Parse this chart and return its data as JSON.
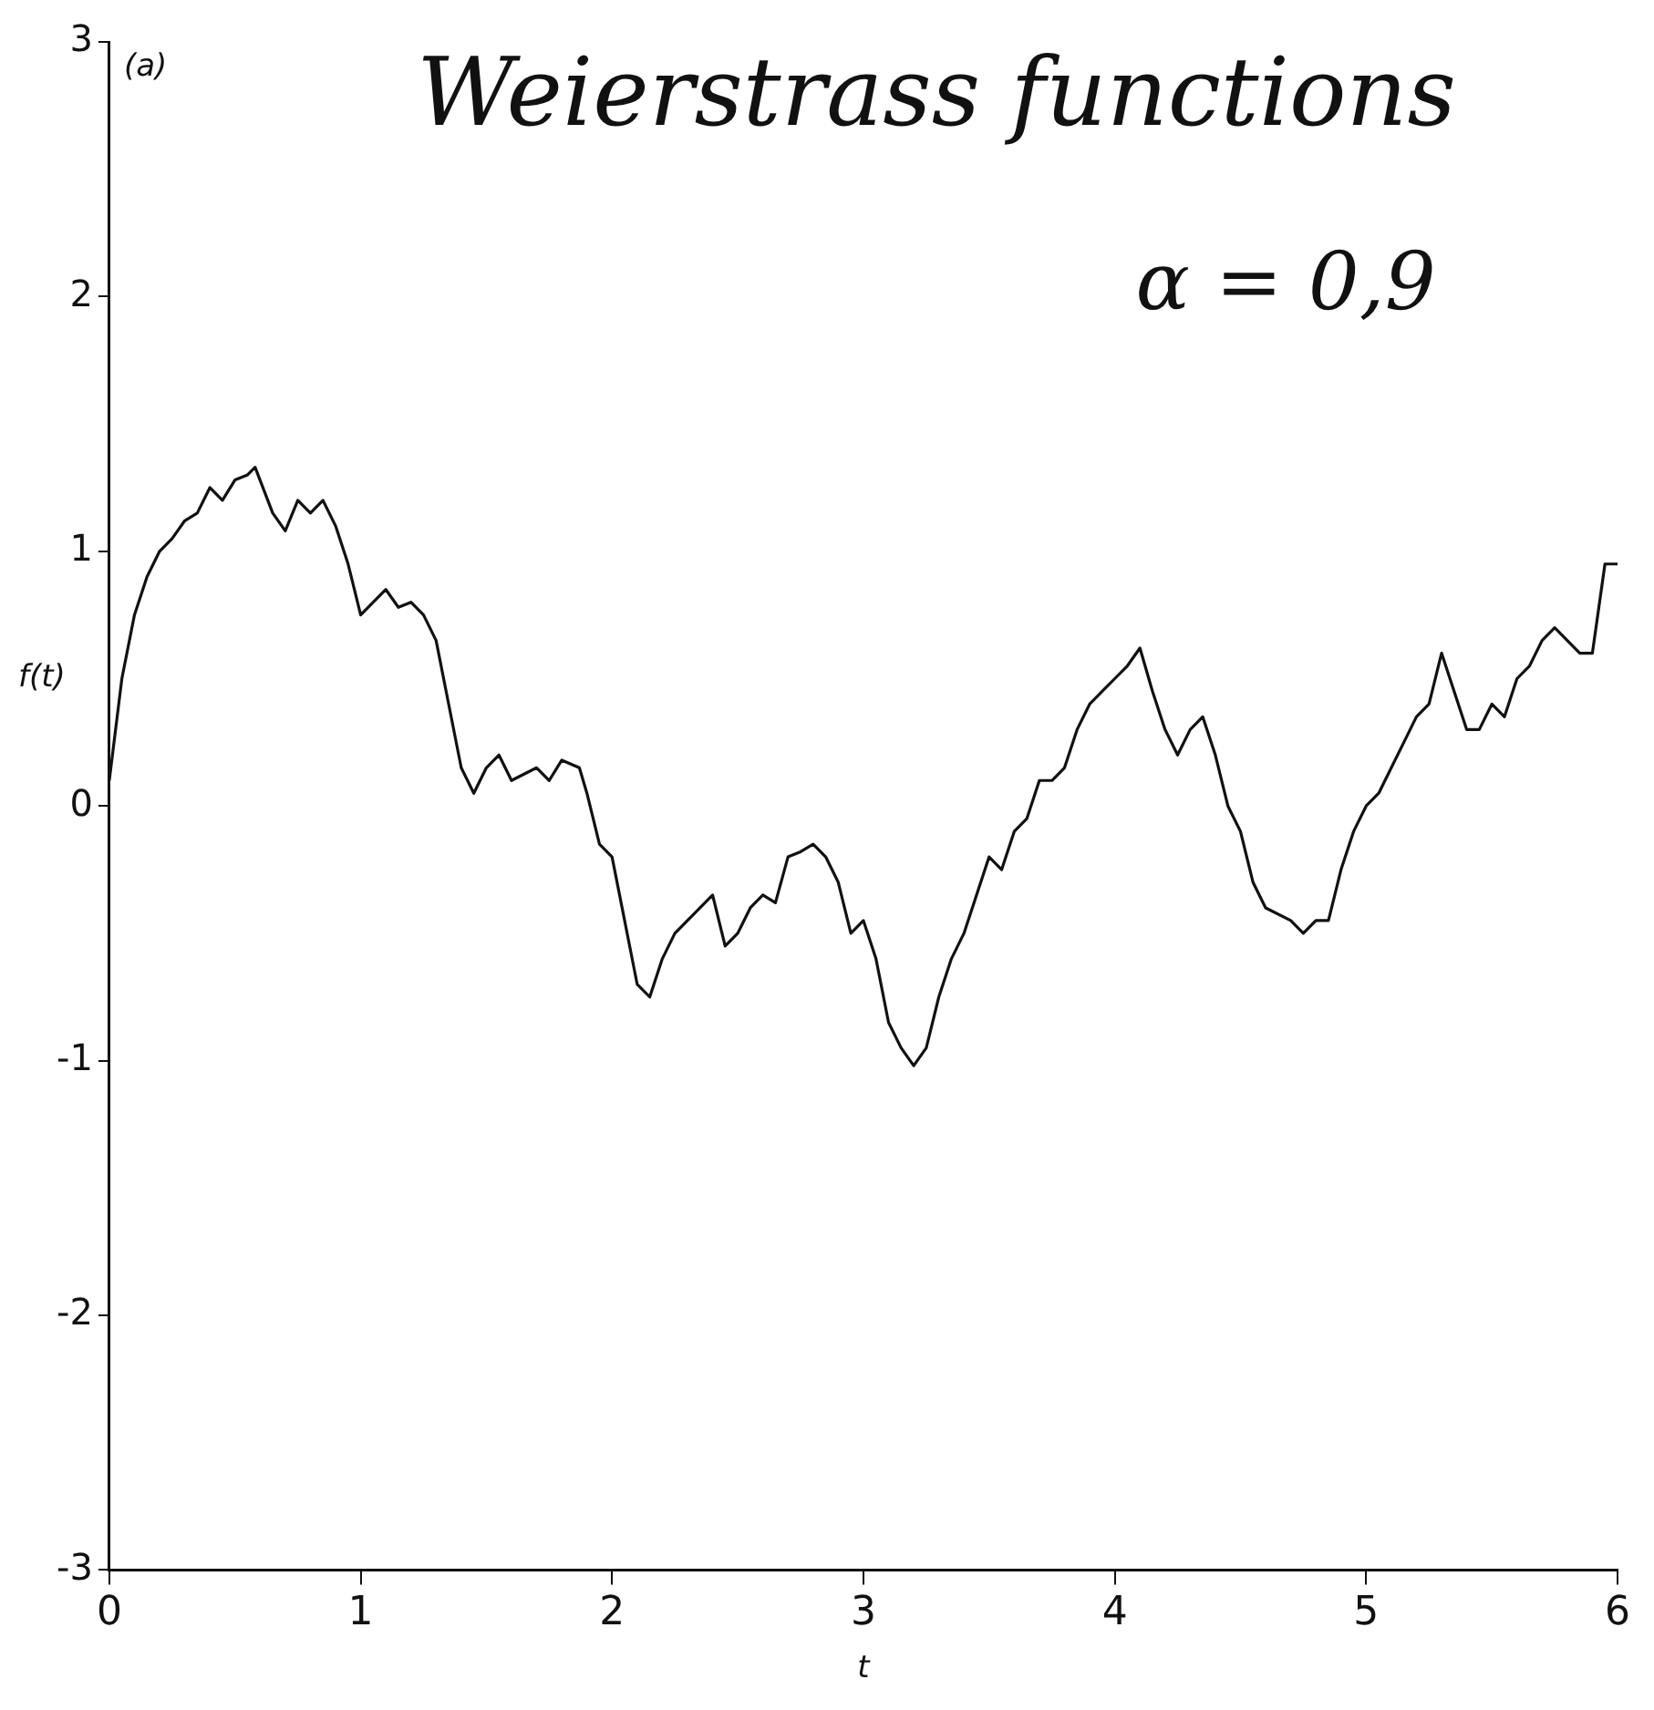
{
  "chart_data": {
    "type": "line",
    "title": "Weierstrass functions",
    "xlabel": "t",
    "ylabel": "f(t)",
    "annotations": [
      "(a)",
      "α = 0,9"
    ],
    "x": [
      0,
      0.05,
      0.1,
      0.15,
      0.2,
      0.25,
      0.3,
      0.35,
      0.4,
      0.45,
      0.5,
      0.55,
      0.58,
      0.65,
      0.7,
      0.75,
      0.8,
      0.85,
      0.9,
      0.95,
      1.0,
      1.05,
      1.1,
      1.15,
      1.2,
      1.25,
      1.3,
      1.35,
      1.4,
      1.45,
      1.5,
      1.55,
      1.6,
      1.7,
      1.75,
      1.8,
      1.87,
      1.9,
      1.95,
      2.0,
      2.05,
      2.1,
      2.15,
      2.2,
      2.25,
      2.3,
      2.35,
      2.4,
      2.45,
      2.5,
      2.55,
      2.6,
      2.65,
      2.7,
      2.75,
      2.8,
      2.85,
      2.9,
      2.95,
      3.0,
      3.05,
      3.1,
      3.15,
      3.2,
      3.25,
      3.3,
      3.35,
      3.4,
      3.45,
      3.5,
      3.55,
      3.6,
      3.65,
      3.7,
      3.75,
      3.8,
      3.85,
      3.9,
      3.95,
      4.0,
      4.05,
      4.1,
      4.15,
      4.2,
      4.25,
      4.3,
      4.35,
      4.4,
      4.45,
      4.5,
      4.55,
      4.6,
      4.7,
      4.75,
      4.8,
      4.85,
      4.9,
      4.95,
      5.0,
      5.05,
      5.1,
      5.15,
      5.2,
      5.25,
      5.3,
      5.35,
      5.4,
      5.45,
      5.5,
      5.55,
      5.6,
      5.65,
      5.7,
      5.75,
      5.8,
      5.85,
      5.9,
      5.95,
      6.0
    ],
    "series": [
      {
        "color": "#111111",
        "values": [
          0.1,
          0.5,
          0.75,
          0.9,
          1.0,
          1.05,
          1.12,
          1.15,
          1.25,
          1.2,
          1.28,
          1.3,
          1.33,
          1.15,
          1.08,
          1.2,
          1.15,
          1.2,
          1.1,
          0.95,
          0.75,
          0.8,
          0.85,
          0.78,
          0.8,
          0.75,
          0.65,
          0.4,
          0.15,
          0.05,
          0.15,
          0.2,
          0.1,
          0.15,
          0.1,
          0.18,
          0.15,
          0.05,
          -0.15,
          -0.2,
          -0.45,
          -0.7,
          -0.75,
          -0.6,
          -0.5,
          -0.45,
          -0.4,
          -0.35,
          -0.55,
          -0.5,
          -0.4,
          -0.35,
          -0.38,
          -0.2,
          -0.18,
          -0.15,
          -0.2,
          -0.3,
          -0.5,
          -0.45,
          -0.6,
          -0.85,
          -0.95,
          -1.02,
          -0.95,
          -0.75,
          -0.6,
          -0.5,
          -0.35,
          -0.2,
          -0.25,
          -0.1,
          -0.05,
          0.1,
          0.1,
          0.15,
          0.3,
          0.4,
          0.45,
          0.5,
          0.55,
          0.62,
          0.45,
          0.3,
          0.2,
          0.3,
          0.35,
          0.2,
          0.0,
          -0.1,
          -0.3,
          -0.4,
          -0.45,
          -0.5,
          -0.45,
          -0.45,
          -0.25,
          -0.1,
          0.0,
          0.05,
          0.15,
          0.25,
          0.35,
          0.4,
          0.6,
          0.45,
          0.3,
          0.3,
          0.4,
          0.35,
          0.5,
          0.55,
          0.65,
          0.7,
          0.65,
          0.6,
          0.6,
          0.95,
          0.95
        ]
      }
    ],
    "xlim": [
      0,
      6
    ],
    "xticks": [
      0,
      1,
      2,
      3,
      4,
      5,
      6
    ],
    "ylim": [
      -3,
      3
    ],
    "yticks": [
      -3,
      -2,
      -1,
      0,
      1,
      2,
      3
    ],
    "grid": false,
    "legend": false,
    "marker": "none",
    "line_style": "solid"
  }
}
